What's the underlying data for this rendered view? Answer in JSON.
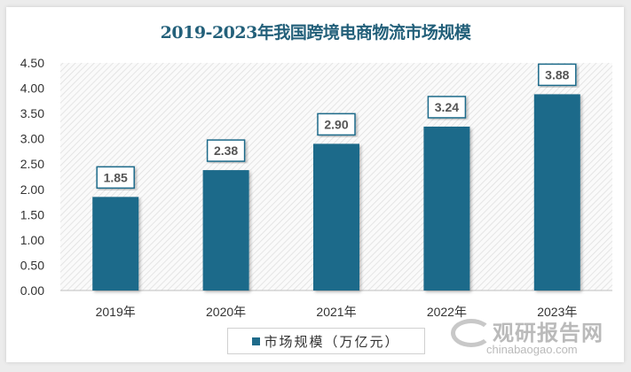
{
  "chart_data": {
    "type": "bar",
    "title": "2019-2023年我国跨境电商物流市场规模",
    "categories": [
      "2019年",
      "2020年",
      "2021年",
      "2022年",
      "2023年"
    ],
    "series": [
      {
        "name": "市场规模（万亿元）",
        "values": [
          1.85,
          2.38,
          2.9,
          3.24,
          3.88
        ]
      }
    ],
    "data_labels": [
      "1.85",
      "2.38",
      "2.90",
      "3.24",
      "3.88"
    ],
    "xlabel": "",
    "ylabel": "",
    "ylim": [
      0,
      4.5
    ],
    "yticks": [
      "0.00",
      "0.50",
      "1.00",
      "1.50",
      "2.00",
      "2.50",
      "3.00",
      "3.50",
      "4.00",
      "4.50"
    ],
    "grid": false,
    "legend": "bottom",
    "bar_color": "#1f6b8a",
    "title_color": "#23607a"
  },
  "watermark": {
    "cn": "观研报告网",
    "en": "chinabaogao.com"
  }
}
